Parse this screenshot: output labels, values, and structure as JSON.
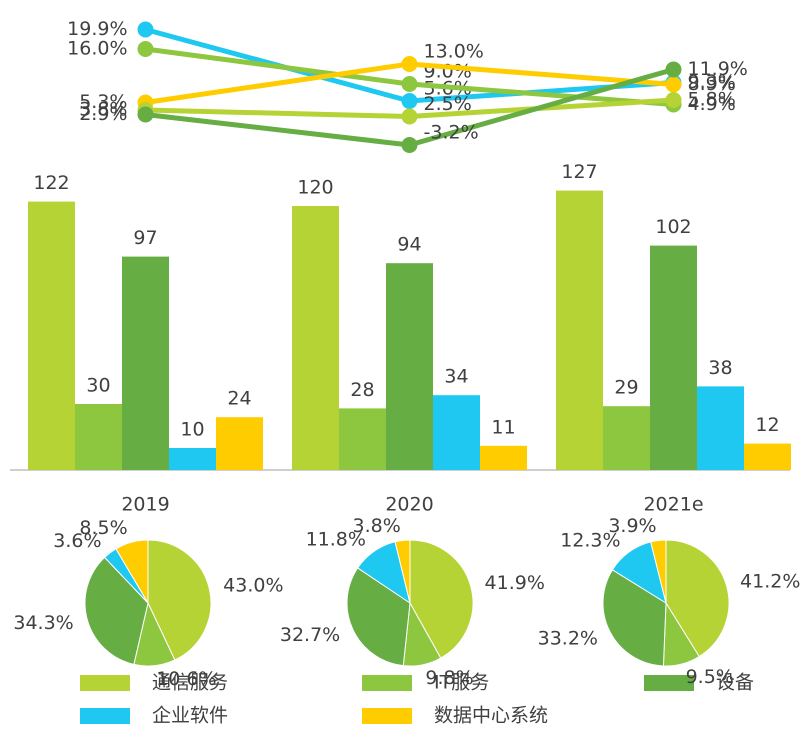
{
  "chart_data": [
    {
      "type": "line",
      "categories": [
        "2019",
        "2020",
        "2021e"
      ],
      "series": [
        {
          "name": "企业软件",
          "color": "#1ec8f0",
          "values": [
            19.9,
            5.6,
            9.3
          ],
          "value_labels": [
            "19.9%",
            "5.6%",
            "9.3%"
          ]
        },
        {
          "name": "IT服务",
          "color": "#8dc63f",
          "values": [
            16.0,
            9.0,
            4.9
          ],
          "value_labels": [
            "16.0%",
            "9.0%",
            "4.9%"
          ]
        },
        {
          "name": "数据中心系统",
          "color": "#ffcc00",
          "values": [
            5.3,
            13.0,
            8.9
          ],
          "value_labels": [
            "5.3%",
            "13.0%",
            "8.9%"
          ]
        },
        {
          "name": "通信服务",
          "color": "#b5d334",
          "values": [
            3.8,
            2.5,
            5.8
          ],
          "value_labels": [
            "3.8%",
            "2.5%",
            "5.8%"
          ]
        },
        {
          "name": "设备",
          "color": "#66ad44",
          "values": [
            2.9,
            -3.2,
            11.9
          ],
          "value_labels": [
            "2.9%",
            "-3.2%",
            "11.9%"
          ]
        }
      ]
    },
    {
      "type": "bar",
      "categories": [
        "2019",
        "2020",
        "2021e"
      ],
      "series": [
        {
          "name": "通信服务",
          "color": "#b5d334",
          "values": [
            122,
            120,
            127
          ]
        },
        {
          "name": "IT服务",
          "color": "#8dc63f",
          "values": [
            30,
            28,
            29
          ]
        },
        {
          "name": "设备",
          "color": "#66ad44",
          "values": [
            97,
            94,
            102
          ]
        },
        {
          "name": "企业软件",
          "color": "#1ec8f0",
          "values": [
            10,
            34,
            38
          ]
        },
        {
          "name": "数据中心系统",
          "color": "#ffcc00",
          "values": [
            24,
            11,
            12
          ]
        }
      ]
    },
    {
      "type": "pie",
      "colors": [
        "#b5d334",
        "#8dc63f",
        "#66ad44",
        "#1ec8f0",
        "#ffcc00"
      ],
      "values": [
        43.0,
        10.6,
        34.3,
        3.6,
        8.5
      ],
      "value_labels": [
        "43.0%",
        "10.6%",
        "34.3%",
        "3.6%",
        "8.5%"
      ]
    },
    {
      "type": "pie",
      "colors": [
        "#b5d334",
        "#8dc63f",
        "#66ad44",
        "#1ec8f0",
        "#ffcc00"
      ],
      "values": [
        41.9,
        9.8,
        32.7,
        11.8,
        3.8
      ],
      "value_labels": [
        "41.9%",
        "9.8%",
        "32.7%",
        "11.8%",
        "3.8%"
      ]
    },
    {
      "type": "pie",
      "colors": [
        "#b5d334",
        "#8dc63f",
        "#66ad44",
        "#1ec8f0",
        "#ffcc00"
      ],
      "values": [
        41.2,
        9.5,
        33.2,
        12.3,
        3.9
      ],
      "value_labels": [
        "41.2%",
        "9.5%",
        "33.2%",
        "12.3%",
        "3.9%"
      ]
    }
  ]
}
